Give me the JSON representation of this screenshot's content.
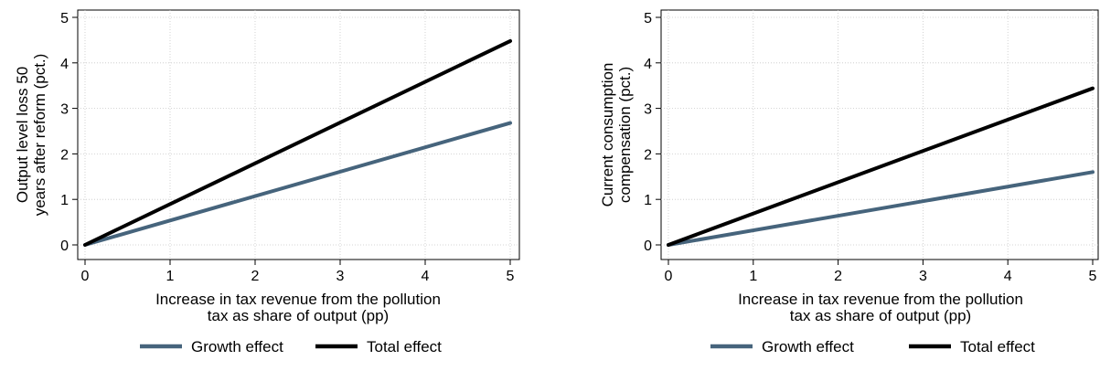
{
  "chart_data": [
    {
      "type": "line",
      "xlabel": [
        "Increase in tax revenue from the pollution",
        "tax as share of output (pp)"
      ],
      "ylabel": [
        "Output level loss 50",
        "years after reform (pct.)"
      ],
      "xlim": [
        0,
        5
      ],
      "ylim": [
        0,
        5
      ],
      "xticks": [
        0,
        1,
        2,
        3,
        4,
        5
      ],
      "yticks": [
        0,
        1,
        2,
        3,
        4,
        5
      ],
      "grid": true,
      "legend_position": "bottom",
      "series": [
        {
          "name": "Growth effect",
          "color": "#46647c",
          "x": [
            0,
            5
          ],
          "y": [
            0,
            2.68
          ]
        },
        {
          "name": "Total effect",
          "color": "#000000",
          "x": [
            0,
            5
          ],
          "y": [
            0,
            4.48
          ]
        }
      ]
    },
    {
      "type": "line",
      "xlabel": [
        "Increase in tax revenue from the pollution",
        "tax as share of output (pp)"
      ],
      "ylabel": [
        "Current consumption",
        "compensation (pct.)"
      ],
      "xlim": [
        0,
        5
      ],
      "ylim": [
        0,
        5
      ],
      "xticks": [
        0,
        1,
        2,
        3,
        4,
        5
      ],
      "yticks": [
        0,
        1,
        2,
        3,
        4,
        5
      ],
      "grid": true,
      "legend_position": "bottom",
      "series": [
        {
          "name": "Growth effect",
          "color": "#46647c",
          "x": [
            0,
            5
          ],
          "y": [
            0,
            1.6
          ]
        },
        {
          "name": "Total effect",
          "color": "#000000",
          "x": [
            0,
            5
          ],
          "y": [
            0,
            3.44
          ]
        }
      ]
    }
  ]
}
